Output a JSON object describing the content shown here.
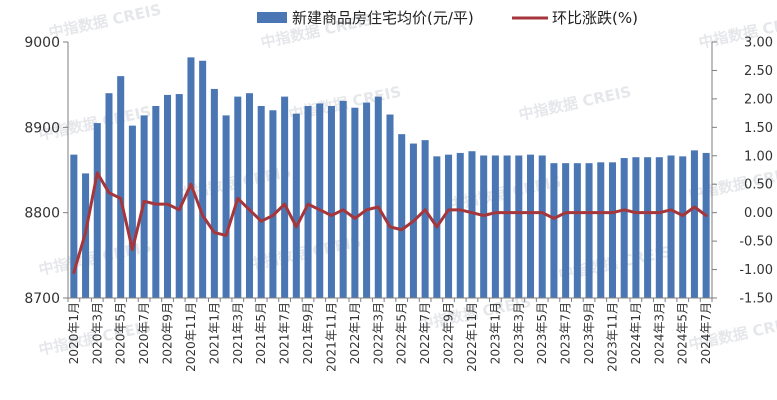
{
  "chart_data": {
    "type": "bar",
    "title": "",
    "xlabel": "",
    "categories": [
      "2020年1月",
      "2020年2月",
      "2020年3月",
      "2020年4月",
      "2020年5月",
      "2020年6月",
      "2020年7月",
      "2020年8月",
      "2020年9月",
      "2020年10月",
      "2020年11月",
      "2020年12月",
      "2021年1月",
      "2021年2月",
      "2021年3月",
      "2021年4月",
      "2021年5月",
      "2021年6月",
      "2021年7月",
      "2021年8月",
      "2021年9月",
      "2021年10月",
      "2021年11月",
      "2021年12月",
      "2022年1月",
      "2022年2月",
      "2022年3月",
      "2022年4月",
      "2022年5月",
      "2022年6月",
      "2022年7月",
      "2022年8月",
      "2022年9月",
      "2022年10月",
      "2022年11月",
      "2022年12月",
      "2023年1月",
      "2023年2月",
      "2023年3月",
      "2023年4月",
      "2023年5月",
      "2023年6月",
      "2023年7月",
      "2023年8月",
      "2023年9月",
      "2023年10月",
      "2023年11月",
      "2023年12月",
      "2024年1月",
      "2024年2月",
      "2024年3月",
      "2024年4月",
      "2024年5月",
      "2024年6月",
      "2024年7月"
    ],
    "tick_labels": [
      "2020年1月",
      "2020年3月",
      "2020年5月",
      "2020年7月",
      "2020年9月",
      "2020年11月",
      "2021年1月",
      "2021年3月",
      "2021年5月",
      "2021年7月",
      "2021年9月",
      "2021年11月",
      "2022年1月",
      "2022年3月",
      "2022年5月",
      "2022年7月",
      "2022年9月",
      "2022年11月",
      "2023年1月",
      "2023年3月",
      "2023年5月",
      "2023年7月",
      "2023年9月",
      "2023年11月",
      "2024年1月",
      "2024年3月",
      "2024年5月",
      "2024年7月"
    ],
    "series": [
      {
        "name": "新建商品房住宅均价(元/平)",
        "type": "bar",
        "axis": "left",
        "color": "#4a77b4",
        "values": [
          8868,
          8846,
          8905,
          8940,
          8960,
          8902,
          8914,
          8925,
          8938,
          8939,
          8982,
          8978,
          8945,
          8914,
          8936,
          8940,
          8925,
          8920,
          8936,
          8916,
          8925,
          8928,
          8925,
          8931,
          8923,
          8929,
          8936,
          8915,
          8892,
          8881,
          8885,
          8866,
          8868,
          8870,
          8872,
          8867,
          8867,
          8867,
          8867,
          8868,
          8867,
          8858,
          8858,
          8858,
          8858,
          8859,
          8859,
          8864,
          8865,
          8865,
          8865,
          8867,
          8866,
          8873,
          8870
        ]
      },
      {
        "name": "环比涨跌(%)",
        "type": "line",
        "axis": "right",
        "color": "#a5363b",
        "values": [
          -1.05,
          -0.35,
          0.7,
          0.35,
          0.25,
          -0.65,
          0.2,
          0.15,
          0.15,
          0.05,
          0.5,
          -0.05,
          -0.35,
          -0.4,
          0.25,
          0.05,
          -0.15,
          -0.05,
          0.15,
          -0.25,
          0.15,
          0.05,
          -0.05,
          0.05,
          -0.1,
          0.05,
          0.1,
          -0.25,
          -0.3,
          -0.15,
          0.05,
          -0.25,
          0.05,
          0.05,
          0.0,
          -0.05,
          0.0,
          0.0,
          0.0,
          0.0,
          0.0,
          -0.1,
          0.0,
          0.0,
          0.0,
          0.0,
          0.0,
          0.05,
          0.0,
          0.0,
          0.0,
          0.05,
          -0.05,
          0.1,
          -0.05
        ]
      }
    ],
    "y_left": {
      "ylim": [
        8700,
        9000
      ],
      "ticks": [
        "8700",
        "8800",
        "8900",
        "9000"
      ]
    },
    "y_right": {
      "ylim": [
        -1.5,
        3.0
      ],
      "ticks": [
        "-1.50",
        "-1.00",
        "-0.50",
        "0.00",
        "0.50",
        "1.00",
        "1.50",
        "2.00",
        "2.50",
        "3.00"
      ]
    },
    "grid": false,
    "legend_position": "top"
  },
  "watermark": "中指数据 CREIS",
  "colors": {
    "axis": "#7f7f7f"
  }
}
